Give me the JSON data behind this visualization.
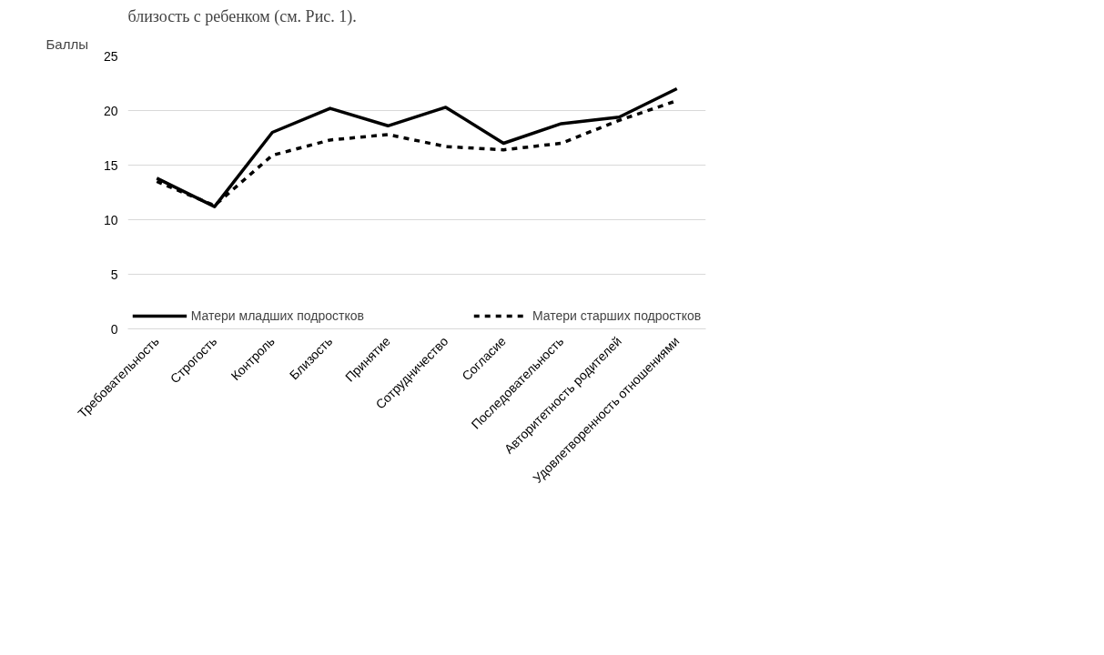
{
  "chart_data": {
    "type": "line",
    "ylabel": "Баллы",
    "categories": [
      "Требовательность",
      "Строгость",
      "Контроль",
      "Близость",
      "Принятие",
      "Сотрудничество",
      "Согласие",
      "Последовательность",
      "Авторитетность родителей",
      "Удовлетворенность отношениями"
    ],
    "series": [
      {
        "name": "Матери младших подростков",
        "color": "#000000",
        "line_style": "solid",
        "values": [
          13.8,
          11.2,
          18.0,
          20.2,
          18.6,
          20.3,
          17.0,
          18.8,
          19.4,
          22.0
        ]
      },
      {
        "name": "Матери старших подростков",
        "color": "#000000",
        "line_style": "dashed",
        "values": [
          13.5,
          11.3,
          15.9,
          17.3,
          17.8,
          16.7,
          16.4,
          17.0,
          19.1,
          20.9
        ]
      }
    ],
    "ylim": [
      0,
      25
    ],
    "yticks": [
      0,
      5,
      10,
      15,
      20,
      25
    ],
    "grid": "y",
    "legend": "bottom",
    "annotations": [
      "близость с ребенком (см. Рис. 1)."
    ]
  }
}
